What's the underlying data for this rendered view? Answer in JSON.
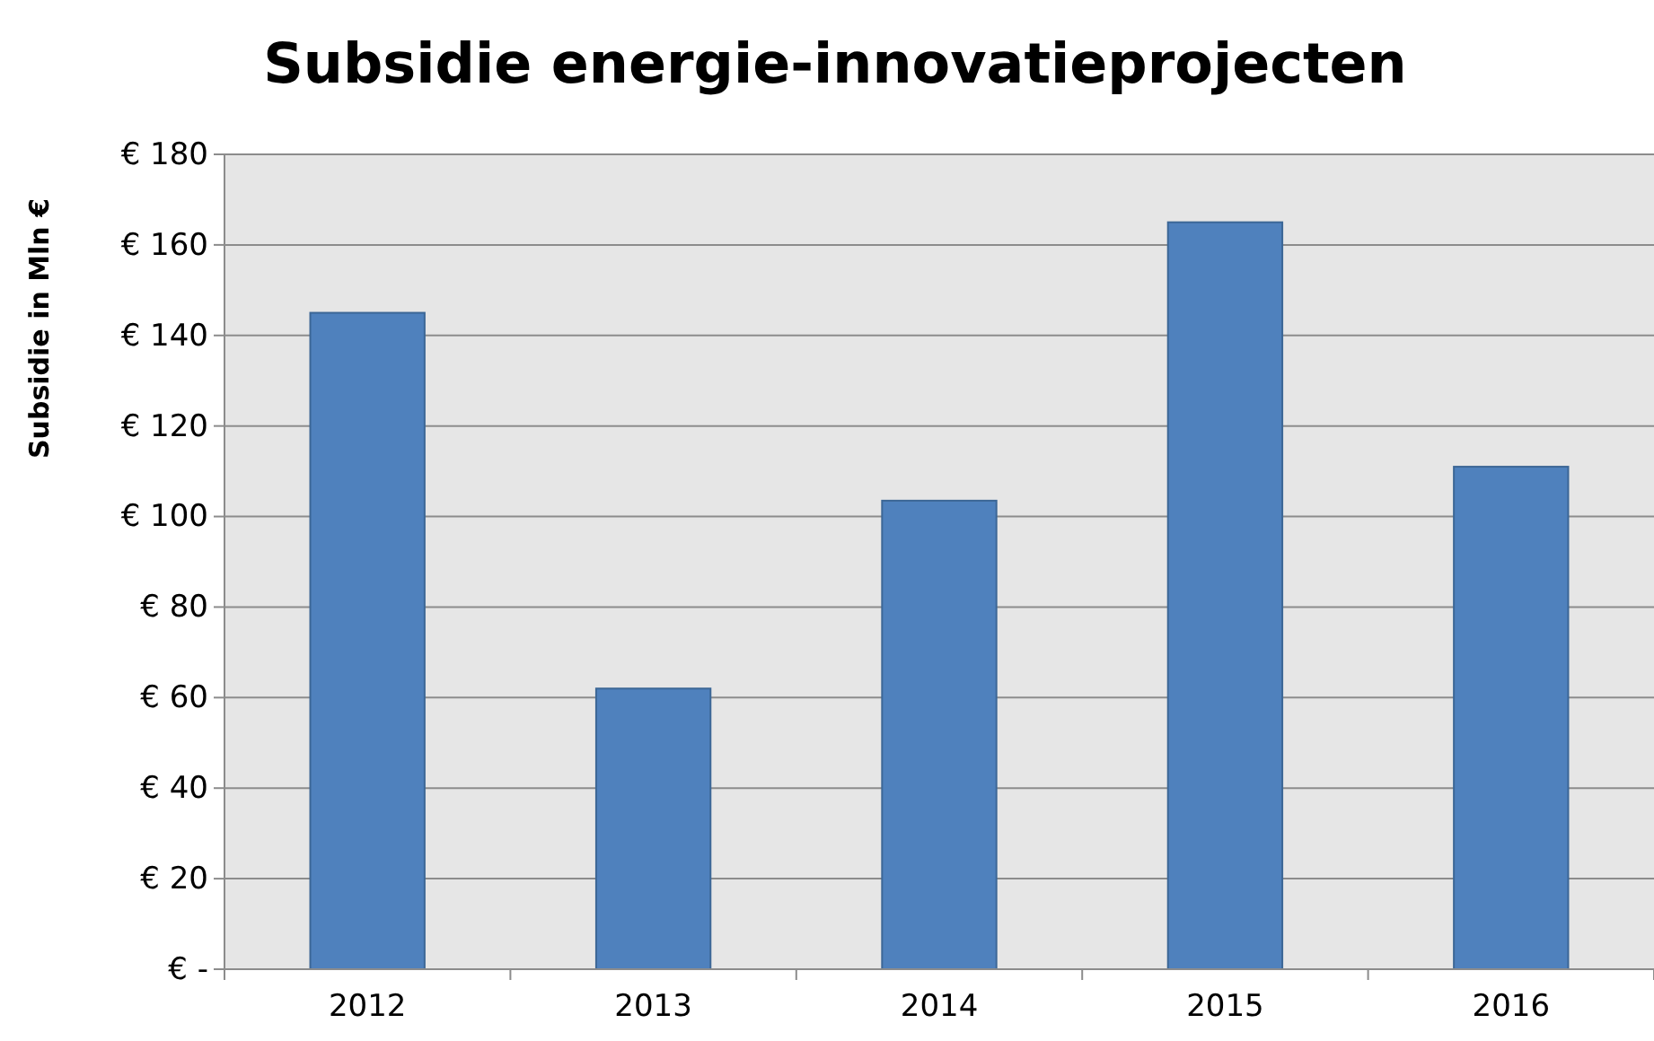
{
  "chart_data": {
    "type": "bar",
    "title": "Subsidie energie-innovatieprojecten",
    "ylabel": "Subsidie in Mln €",
    "categories": [
      "2012",
      "2013",
      "2014",
      "2015",
      "2016"
    ],
    "values": [
      145,
      62,
      103.5,
      165,
      111
    ],
    "color": "#4f81bd",
    "ylim": [
      0,
      180
    ],
    "yticks": [
      {
        "value": 0,
        "label": "€ -"
      },
      {
        "value": 20,
        "label": "€ 20"
      },
      {
        "value": 40,
        "label": "€ 40"
      },
      {
        "value": 60,
        "label": "€ 60"
      },
      {
        "value": 80,
        "label": "€ 80"
      },
      {
        "value": 100,
        "label": "€ 100"
      },
      {
        "value": 120,
        "label": "€ 120"
      },
      {
        "value": 140,
        "label": "€ 140"
      },
      {
        "value": 160,
        "label": "€ 160"
      },
      {
        "value": 180,
        "label": "€ 180"
      }
    ],
    "grid": "y"
  }
}
